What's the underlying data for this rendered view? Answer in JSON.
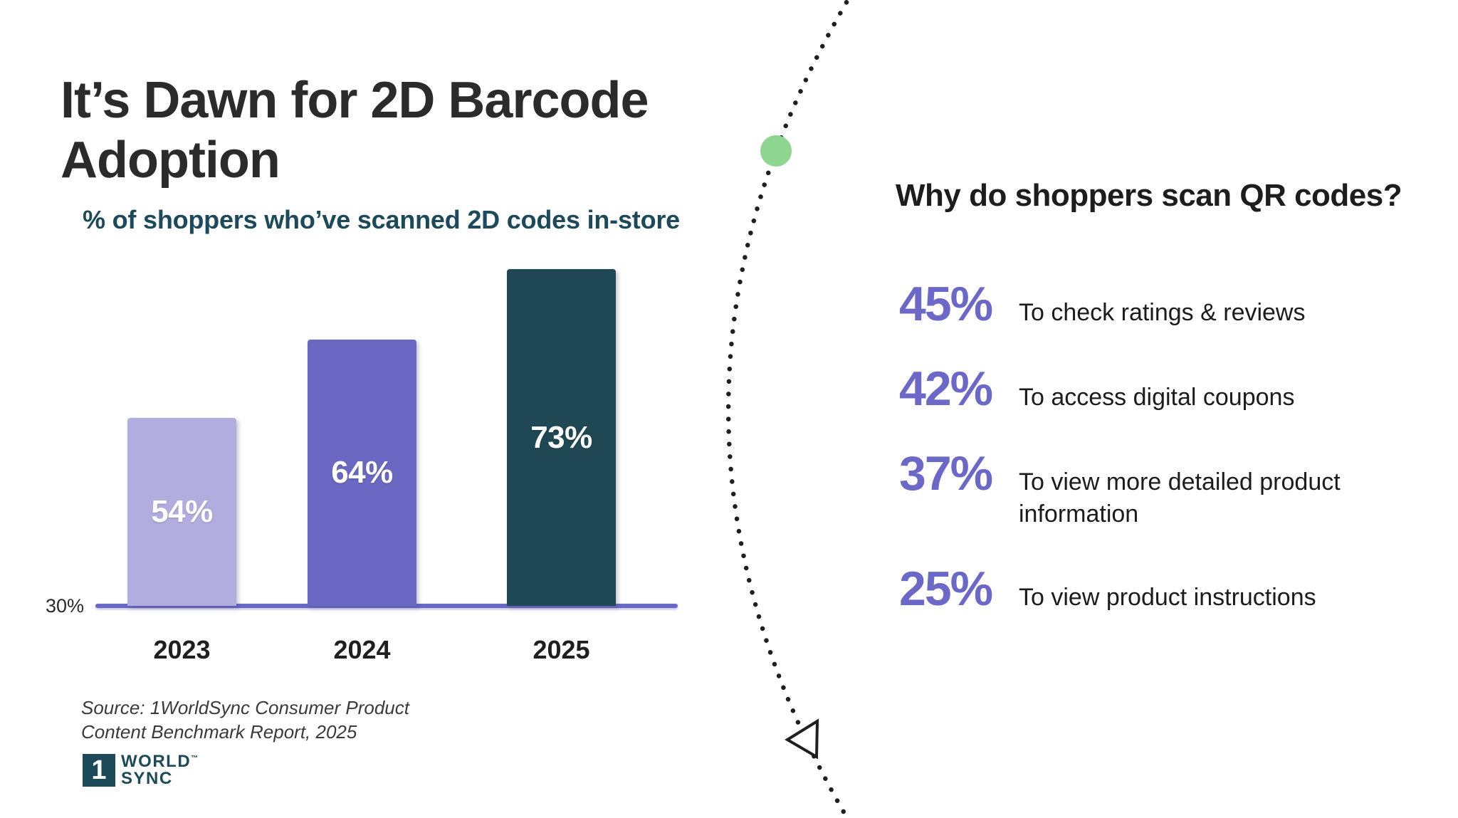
{
  "header": {
    "title": "It’s Dawn for 2D Barcode Adoption"
  },
  "chart_data": {
    "type": "bar",
    "title": "% of shoppers who’ve scanned 2D codes in-store",
    "categories": [
      "2023",
      "2024",
      "2025"
    ],
    "values": [
      54,
      64,
      73
    ],
    "value_labels": [
      "54%",
      "64%",
      "73%"
    ],
    "unit": "%",
    "ylim": [
      30,
      78
    ],
    "baseline_tick_label": "30%",
    "bar_colors": [
      "#b1addf",
      "#6a68c3",
      "#1f4854"
    ],
    "value_label_color": "#ffffff",
    "axis_color": "#6a68c3",
    "grid": false,
    "legend": false
  },
  "source": {
    "text": "Source: 1WorldSync Consumer Product Content Benchmark Report, 2025"
  },
  "logo": {
    "mark": "1",
    "word1": "WORLD",
    "trademark": "™",
    "word2": "SYNC"
  },
  "qr_section": {
    "heading": "Why do shoppers scan QR codes?",
    "stats": [
      {
        "value": "45%",
        "label": "To check ratings & reviews"
      },
      {
        "value": "42%",
        "label": "To access digital coupons"
      },
      {
        "value": "37%",
        "label": "To view more detailed product information"
      },
      {
        "value": "25%",
        "label": "To view product instructions"
      }
    ]
  },
  "colors": {
    "title_text": "#2b2b2b",
    "subtitle_teal": "#1d4a5a",
    "stat_purple": "#6b68c8",
    "green_dot": "#8fd690",
    "dotted_line": "#1f1f1f",
    "background": "#ffffff"
  }
}
